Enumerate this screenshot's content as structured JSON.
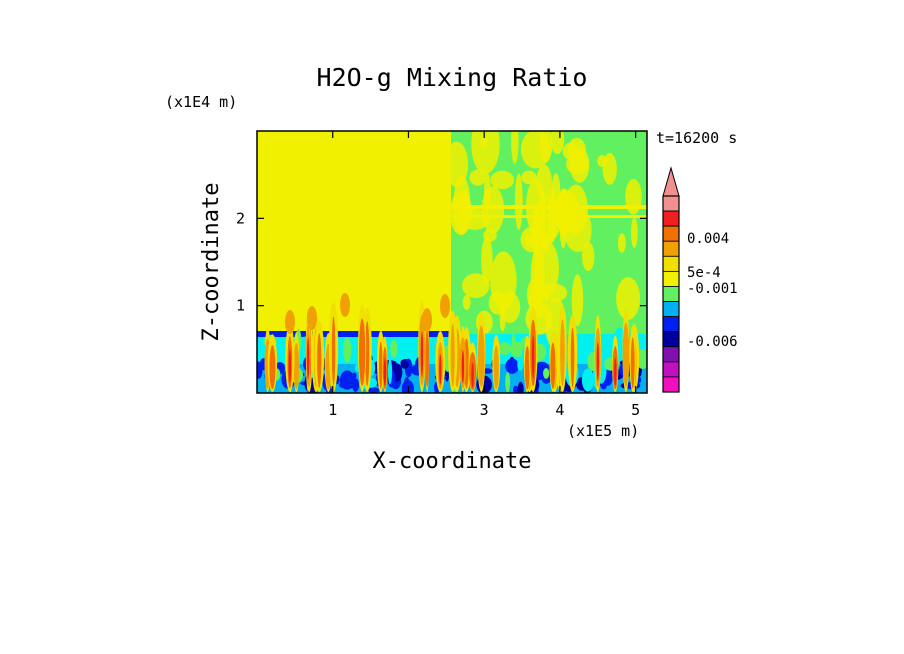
{
  "chart_data": {
    "type": "heatmap",
    "title": "H2O-g Mixing Ratio",
    "xlabel": "X-coordinate",
    "ylabel": "Z-coordinate",
    "x_unit": "(x1E5 m)",
    "y_unit": "(x1E4 m)",
    "time_label": "t=16200 s",
    "x_ticks": [
      "1",
      "2",
      "3",
      "4",
      "5"
    ],
    "x_tick_values": [
      1,
      2,
      3,
      4,
      5
    ],
    "y_ticks": [
      "1",
      "2"
    ],
    "y_tick_values": [
      1,
      2
    ],
    "xlim": [
      0,
      5.15
    ],
    "ylim": [
      0,
      3
    ],
    "colorbar": {
      "tick_labels": [
        "0.004",
        "5e-4",
        "-0.001",
        "-0.006"
      ],
      "tick_levels": [
        0.004,
        0.0005,
        -0.001,
        -0.006
      ],
      "colors_top_to_bottom": [
        "#f09090",
        "#f02020",
        "#f07000",
        "#f0a000",
        "#f0e000",
        "#f0f000",
        "#60f060",
        "#00b0f0",
        "#0020f0",
        "#0000a0",
        "#8010b0",
        "#c010c0",
        "#f010c0"
      ],
      "extend_arrow": "top"
    },
    "regions": [
      {
        "x": [
          0,
          2.5
        ],
        "z": [
          0.7,
          3
        ],
        "value": 0.0003
      },
      {
        "x": [
          2.5,
          5.15
        ],
        "z": [
          0.7,
          3
        ],
        "value": -0.0008
      },
      {
        "x": [
          0,
          5.15
        ],
        "z": [
          0.4,
          0.7
        ],
        "value": -0.0015
      },
      {
        "x": [
          0,
          5.15
        ],
        "z": [
          0,
          0.4
        ],
        "value": -0.003
      },
      {
        "x": [
          0,
          2.5
        ],
        "z": [
          0.65,
          0.7
        ],
        "value": -0.004
      }
    ]
  }
}
